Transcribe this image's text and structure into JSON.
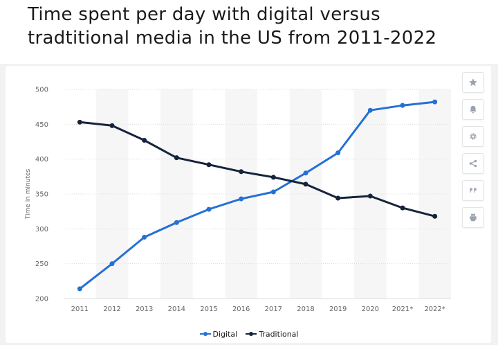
{
  "title": "Time spent per day with digital versus tradtitional media in the US from 2011-2022",
  "toolbar": {
    "icons": [
      "star-icon",
      "bell-icon",
      "gear-icon",
      "share-icon",
      "quote-icon",
      "print-icon"
    ]
  },
  "colors": {
    "digital": "#2470d6",
    "traditional": "#16233b",
    "band": "#f6f6f6",
    "grid": "#dcdcdc",
    "axis_text": "#666666"
  },
  "chart_data": {
    "type": "line",
    "title": "",
    "xlabel": "",
    "ylabel": "Time in minutes",
    "categories": [
      "2011",
      "2012",
      "2013",
      "2014",
      "2015",
      "2016",
      "2017",
      "2018",
      "2019",
      "2020",
      "2021*",
      "2022*"
    ],
    "ylim": [
      200,
      500
    ],
    "yticks": [
      200,
      250,
      300,
      350,
      400,
      450,
      500
    ],
    "grid": true,
    "legend": "bottom-center",
    "series": [
      {
        "name": "Digital",
        "values": [
          214,
          250,
          288,
          309,
          328,
          343,
          353,
          380,
          409,
          470,
          477,
          482
        ]
      },
      {
        "name": "Traditional",
        "values": [
          453,
          448,
          427,
          402,
          392,
          382,
          374,
          364,
          344,
          347,
          330,
          318
        ]
      }
    ]
  }
}
